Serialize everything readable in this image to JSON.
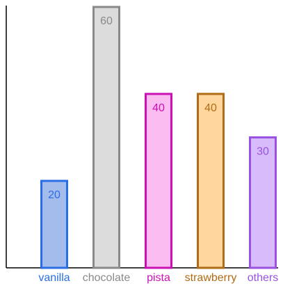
{
  "chart_data": {
    "type": "bar",
    "categories": [
      "vanilla",
      "chocolate",
      "pista",
      "strawberry",
      "others"
    ],
    "values": [
      20,
      60,
      40,
      40,
      30
    ],
    "ylim": [
      0,
      60
    ],
    "grid": false,
    "bar_style": [
      {
        "fill": "#a3bcec",
        "stroke": "#2a6ee6",
        "label_color": "#2a6ee6"
      },
      {
        "fill": "#dcdcdc",
        "stroke": "#8a8a8a",
        "label_color": "#8a8a8a"
      },
      {
        "fill": "#fbbcf1",
        "stroke": "#cc11b4",
        "label_color": "#cc11b4"
      },
      {
        "fill": "#fed69e",
        "stroke": "#b06c14",
        "label_color": "#b06c14"
      },
      {
        "fill": "#d8bbfb",
        "stroke": "#9a52e0",
        "label_color": "#9a52e0"
      }
    ]
  }
}
